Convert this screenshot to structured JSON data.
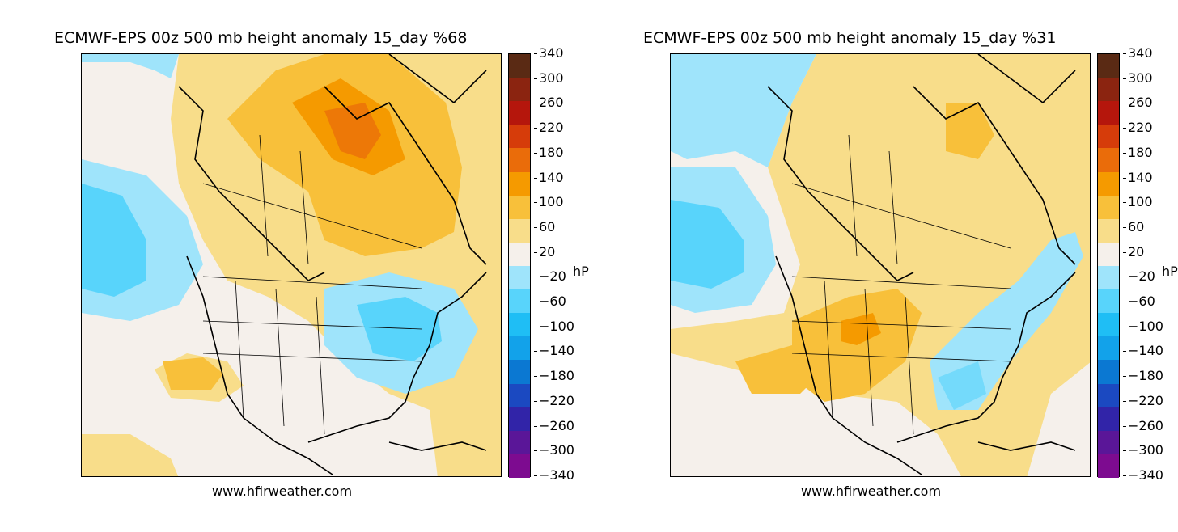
{
  "panels": [
    {
      "title": "ECMWF-EPS 00z 500 mb height anomaly 15_day %68",
      "credit": "www.hfirweather.com"
    },
    {
      "title": "ECMWF-EPS 00z 500 mb height anomaly 15_day %31",
      "credit": "www.hfirweather.com"
    }
  ],
  "colorbar": {
    "unit": "hP",
    "ticks": [
      "340",
      "300",
      "260",
      "220",
      "180",
      "140",
      "100",
      "60",
      "20",
      "−20",
      "−60",
      "−100",
      "−140",
      "−180",
      "−220",
      "−260",
      "−300",
      "−340"
    ],
    "colors": [
      "#5a2a14",
      "#8b2410",
      "#b5160c",
      "#d63c0a",
      "#ea6c0a",
      "#f59a00",
      "#f8c03a",
      "#f8dd8a",
      "#f5f0eb",
      "#9fe4fb",
      "#58d4fb",
      "#1fbef5",
      "#12a2ea",
      "#0b78d2",
      "#1b49c1",
      "#3124a8",
      "#5a1698",
      "#7d0b90"
    ]
  }
}
